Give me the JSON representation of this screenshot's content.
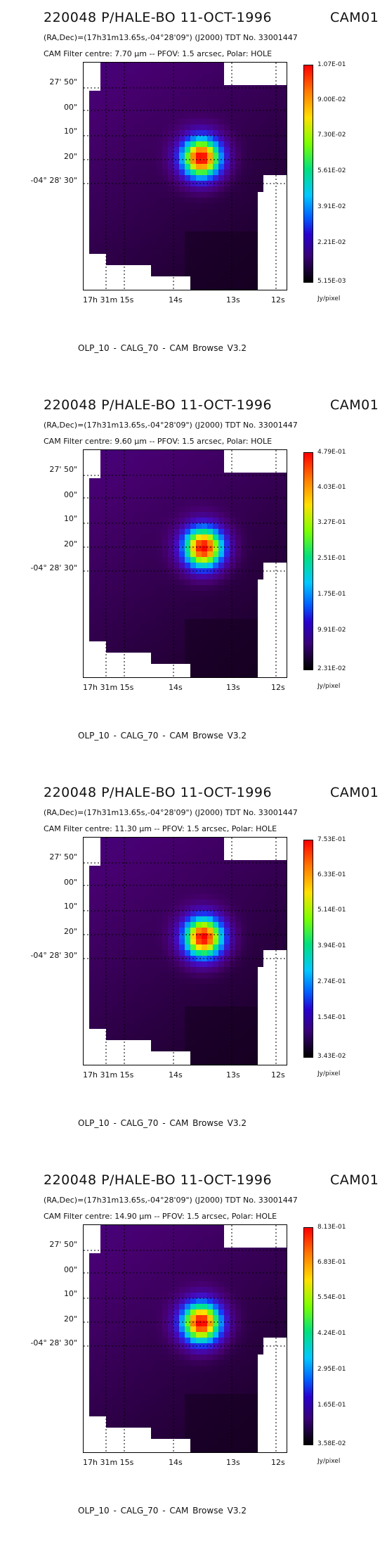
{
  "header": {
    "title": "220048 P/HALE-BO 11-OCT-1996",
    "cam_id": "CAM01",
    "coordinates": "(RA,Dec)=(17h31m13.65s,-04°28'09\") (J2000) TDT No. 33001447"
  },
  "axes": {
    "y_ticks": [
      "27' 50\"",
      "00\"",
      "10\"",
      "20\"",
      "-04° 28' 30\""
    ],
    "x_ticks": [
      "17h 31m 15s",
      "14s",
      "13s",
      "12s"
    ]
  },
  "colorbar_unit": "Jy/pixel",
  "footer": "OLP_10   - CALG_70   - CAM Browse V3.2",
  "panels": [
    {
      "filter_text": "CAM  Filter  centre:  7.70 μm --   PFOV:  1.5 arcsec, Polar: HOLE",
      "colorbar_ticks": [
        "1.07E-01",
        "9.00E-02",
        "7.30E-02",
        "5.61E-02",
        "3.91E-02",
        "2.21E-02",
        "5.15E-03"
      ]
    },
    {
      "filter_text": "CAM  Filter  centre:  9.60 μm --   PFOV:  1.5 arcsec, Polar: HOLE",
      "colorbar_ticks": [
        "4.79E-01",
        "4.03E-01",
        "3.27E-01",
        "2.51E-01",
        "1.75E-01",
        "9.91E-02",
        "2.31E-02"
      ]
    },
    {
      "filter_text": "CAM  Filter  centre: 11.30 μm --   PFOV:  1.5 arcsec, Polar: HOLE",
      "colorbar_ticks": [
        "7.53E-01",
        "6.33E-01",
        "5.14E-01",
        "3.94E-01",
        "2.74E-01",
        "1.54E-01",
        "3.43E-02"
      ]
    },
    {
      "filter_text": "CAM  Filter  centre: 14.90 μm --   PFOV:  1.5 arcsec, Polar: HOLE",
      "colorbar_ticks": [
        "8.13E-01",
        "6.83E-01",
        "5.54E-01",
        "4.24E-01",
        "2.95E-01",
        "1.65E-01",
        "3.58E-02"
      ]
    }
  ]
}
